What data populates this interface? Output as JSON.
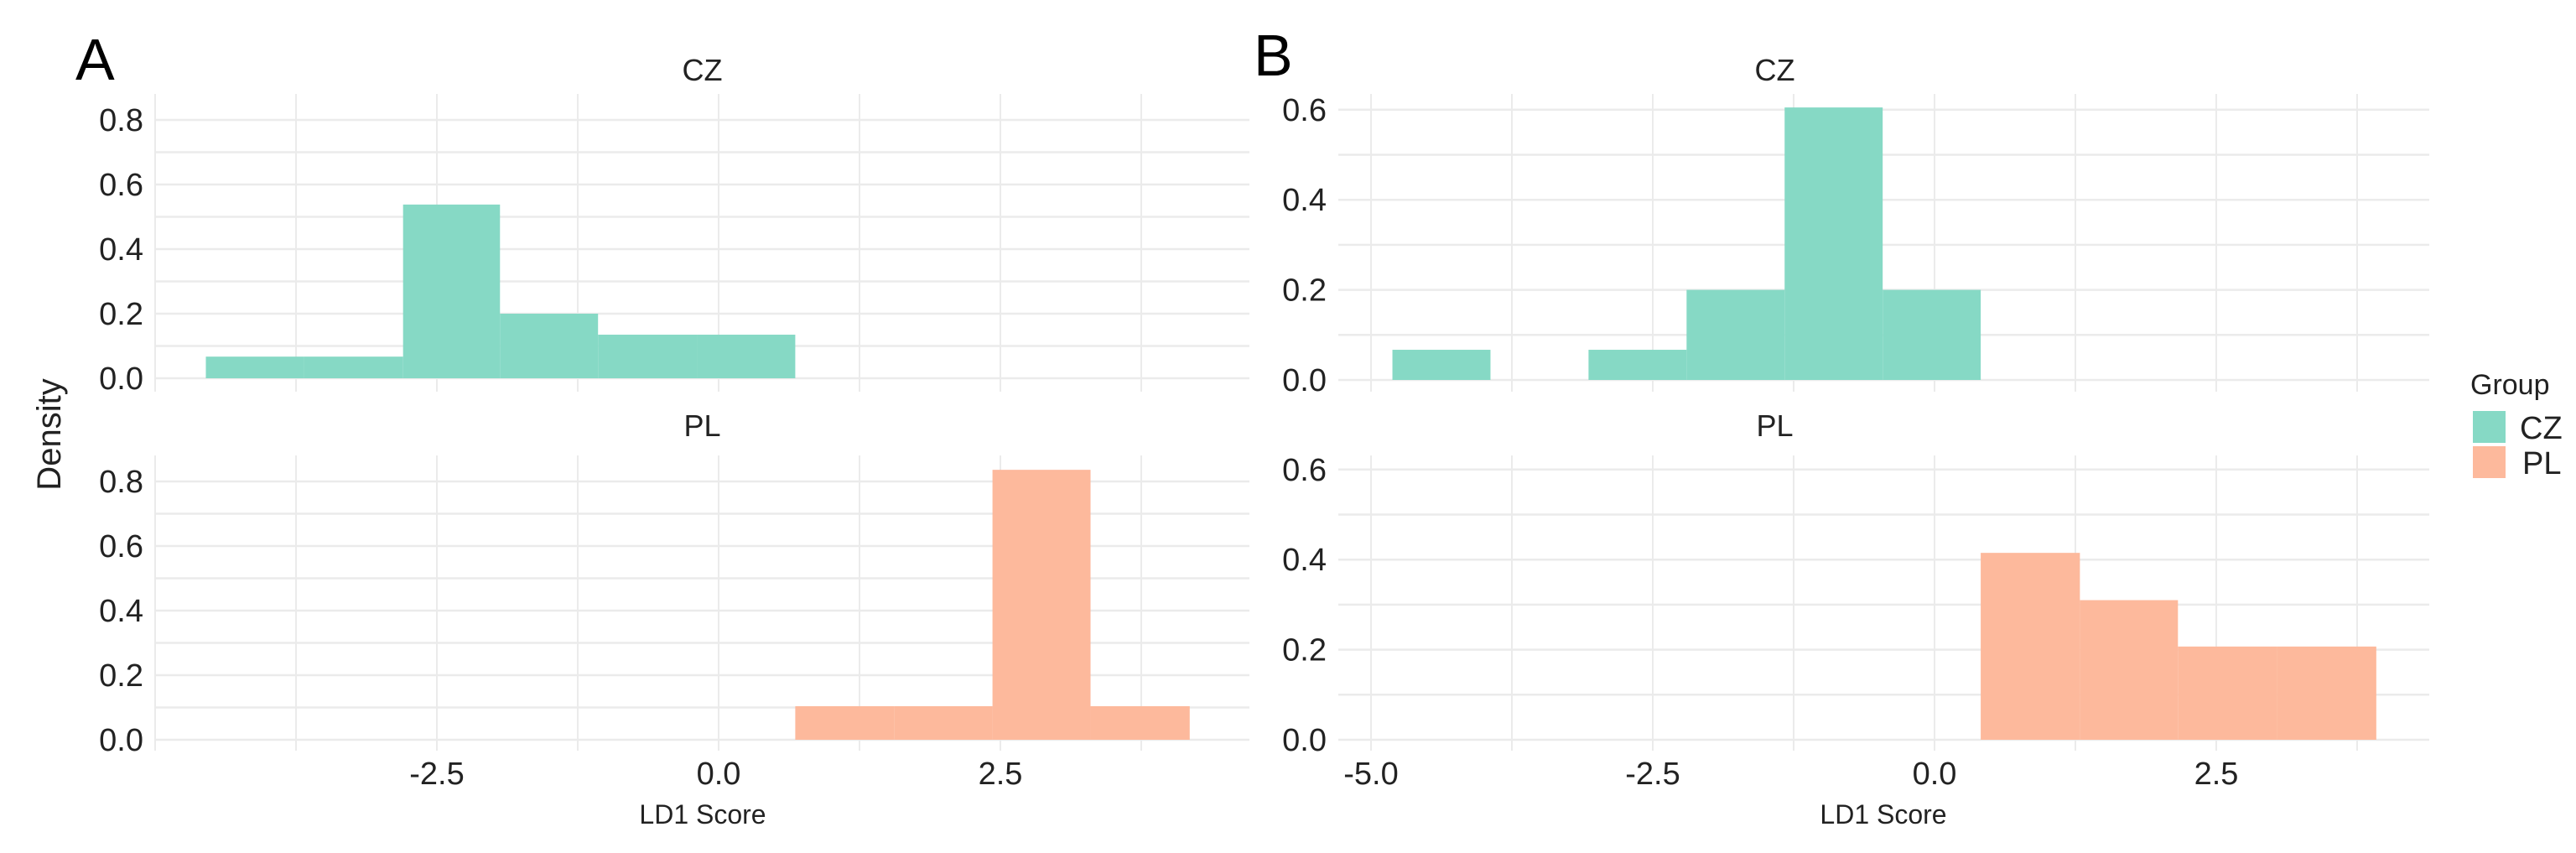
{
  "chart_data": [
    {
      "type": "bar",
      "panel_label": "A",
      "xlabel": "LD1 Score",
      "ylabel": "Density",
      "xlim": [
        -5.0,
        4.71
      ],
      "x_ticks": [
        -2.5,
        0.0,
        2.5
      ],
      "x_tick_labels": [
        "-2.5",
        "0.0",
        "2.5"
      ],
      "grid": true,
      "facets": [
        {
          "title": "CZ",
          "color": "#86d9c5",
          "ylim": [
            0,
            0.85
          ],
          "y_ticks": [
            0.0,
            0.2,
            0.4,
            0.6,
            0.8
          ],
          "y_tick_labels": [
            "0.0",
            "0.2",
            "0.4",
            "0.6",
            "0.8"
          ],
          "bins": [
            {
              "start": -4.55,
              "end": -3.68,
              "density": 0.067
            },
            {
              "start": -3.68,
              "end": -2.8,
              "density": 0.067
            },
            {
              "start": -2.8,
              "end": -1.94,
              "density": 0.538
            },
            {
              "start": -1.94,
              "end": -1.07,
              "density": 0.2
            },
            {
              "start": -1.07,
              "end": -0.19,
              "density": 0.135
            },
            {
              "start": -0.19,
              "end": 0.68,
              "density": 0.135
            }
          ]
        },
        {
          "title": "PL",
          "color": "#fdb99c",
          "ylim": [
            0,
            0.85
          ],
          "y_ticks": [
            0.0,
            0.2,
            0.4,
            0.6,
            0.8
          ],
          "y_tick_labels": [
            "0.0",
            "0.2",
            "0.4",
            "0.6",
            "0.8"
          ],
          "bins": [
            {
              "start": 0.68,
              "end": 1.56,
              "density": 0.104
            },
            {
              "start": 1.56,
              "end": 2.43,
              "density": 0.104
            },
            {
              "start": 2.43,
              "end": 3.3,
              "density": 0.836
            },
            {
              "start": 3.3,
              "end": 4.18,
              "density": 0.104
            }
          ]
        }
      ]
    },
    {
      "type": "bar",
      "panel_label": "B",
      "xlabel": "LD1 Score",
      "ylabel": "",
      "xlim": [
        -5.3,
        4.37
      ],
      "x_ticks": [
        -5.0,
        -2.5,
        0.0,
        2.5
      ],
      "x_tick_labels": [
        "-5.0",
        "-2.5",
        "0.0",
        "2.5"
      ],
      "grid": true,
      "facets": [
        {
          "title": "CZ",
          "color": "#86d9c5",
          "ylim": [
            0,
            0.64
          ],
          "y_ticks": [
            0.0,
            0.2,
            0.4,
            0.6
          ],
          "y_tick_labels": [
            "0.0",
            "0.2",
            "0.4",
            "0.6"
          ],
          "bins": [
            {
              "start": -4.81,
              "end": -3.94,
              "density": 0.067
            },
            {
              "start": -3.07,
              "end": -2.2,
              "density": 0.067
            },
            {
              "start": -2.2,
              "end": -1.33,
              "density": 0.2
            },
            {
              "start": -1.33,
              "end": -0.46,
              "density": 0.605
            },
            {
              "start": -0.46,
              "end": 0.41,
              "density": 0.2
            }
          ]
        },
        {
          "title": "PL",
          "color": "#fdb99c",
          "ylim": [
            0,
            0.64
          ],
          "y_ticks": [
            0.0,
            0.2,
            0.4,
            0.6
          ],
          "y_tick_labels": [
            "0.0",
            "0.2",
            "0.4",
            "0.6"
          ],
          "bins": [
            {
              "start": 0.41,
              "end": 1.29,
              "density": 0.415
            },
            {
              "start": 1.29,
              "end": 2.16,
              "density": 0.31
            },
            {
              "start": 2.16,
              "end": 3.04,
              "density": 0.207
            },
            {
              "start": 3.04,
              "end": 3.92,
              "density": 0.207
            }
          ]
        }
      ],
      "legend": {
        "title": "Group",
        "position": "right",
        "items": [
          {
            "label": "CZ",
            "color": "#86d9c5"
          },
          {
            "label": "PL",
            "color": "#fdb99c"
          }
        ]
      }
    }
  ]
}
